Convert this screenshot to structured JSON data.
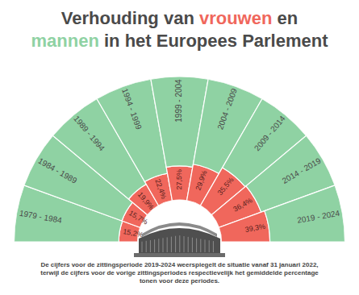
{
  "chart_data": {
    "type": "radial_bar",
    "title": "Verhouding van vrouwen en mannen in het Europees Parlement",
    "note": "De cijfers voor de zittingsperiode 2019-2024 weerspiegelt de situatie vanaf 31 januari 2022, terwijl de cijfers voor de vorige zittingsperiodes respectievelijk het gemiddelde percentage tonen voor deze periodes.",
    "categories": [
      "1979 - 1984",
      "1984 - 1989",
      "1989 - 1994",
      "1994 - 1999",
      "1999 - 2004",
      "2004 - 2009",
      "2009 - 2014",
      "2014 - 2019",
      "2019 - 2024"
    ],
    "series": [
      {
        "name": "vrouwen",
        "color": "#f0675c",
        "values": [
          15.2,
          15.7,
          19.9,
          22.4,
          27.5,
          29.9,
          35.5,
          36.4,
          39.3
        ],
        "value_labels": [
          "15,2%",
          "15,7%",
          "19,9%",
          "22,4%",
          "27,5%",
          "29,9%",
          "35,5%",
          "36,4%",
          "39,3%"
        ]
      },
      {
        "name": "mannen",
        "color": "#8fd2a3",
        "values": [
          84.8,
          84.3,
          80.1,
          77.6,
          72.5,
          70.1,
          64.5,
          63.6,
          60.7
        ]
      }
    ],
    "ylim": [
      0,
      100
    ],
    "stacked": true,
    "data_labels": true,
    "tick_labels": false,
    "grid": false
  }
}
